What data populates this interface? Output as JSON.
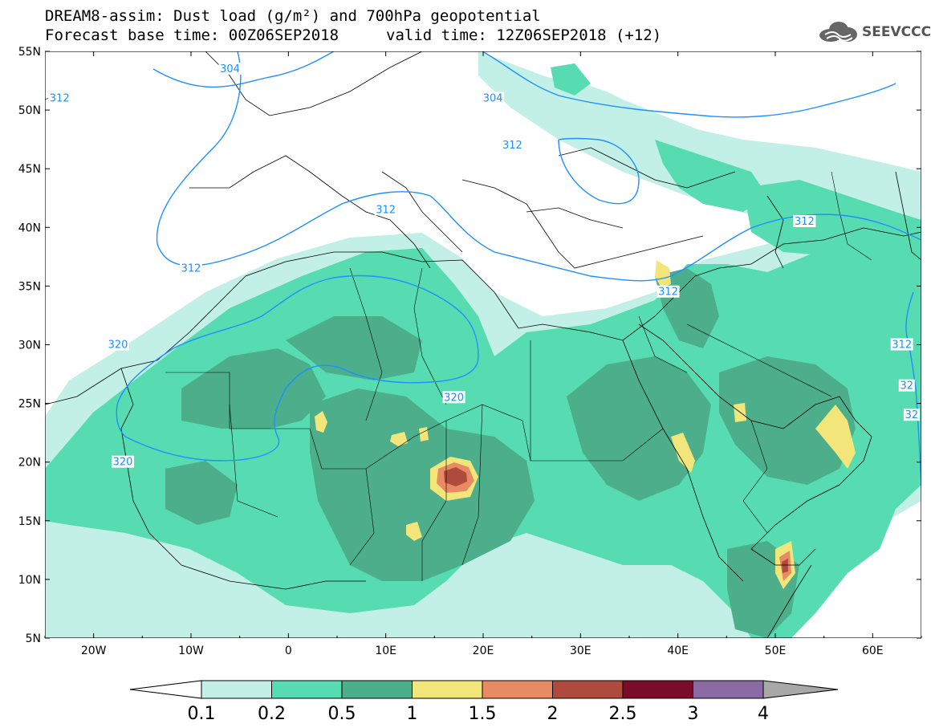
{
  "title": {
    "line1": "DREAM8-assim: Dust load (g/m²) and 700hPa geopotential",
    "base_time": "Forecast base time: 00Z06SEP2018",
    "valid_time": "valid time: 12Z06SEP2018 (+12)"
  },
  "logo": {
    "text": "SEEVCCC",
    "icon": "cloud-logo-icon"
  },
  "map": {
    "lon_range": [
      -25,
      65
    ],
    "lat_range": [
      5,
      55
    ],
    "lat_labels": [
      "55N",
      "50N",
      "45N",
      "40N",
      "35N",
      "30N",
      "25N",
      "20N",
      "15N",
      "10N",
      "5N"
    ],
    "lon_labels": [
      "20W",
      "10W",
      "0",
      "10E",
      "20E",
      "30E",
      "40E",
      "50E",
      "60E"
    ],
    "contour_labels": [
      {
        "text": "304",
        "lon": -6,
        "lat": 53.5
      },
      {
        "text": "312",
        "lon": -23.5,
        "lat": 51
      },
      {
        "text": "304",
        "lon": 21,
        "lat": 51
      },
      {
        "text": "312",
        "lon": 23,
        "lat": 47
      },
      {
        "text": "312",
        "lon": -10,
        "lat": 36.5
      },
      {
        "text": "312",
        "lon": 10,
        "lat": 41.5
      },
      {
        "text": "312",
        "lon": 39,
        "lat": 34.5
      },
      {
        "text": "312",
        "lon": 53,
        "lat": 40.5
      },
      {
        "text": "320",
        "lon": -17.5,
        "lat": 30
      },
      {
        "text": "320",
        "lon": 17,
        "lat": 25.5
      },
      {
        "text": "320",
        "lon": -17,
        "lat": 20
      },
      {
        "text": "312",
        "lon": 63,
        "lat": 30
      },
      {
        "text": "32",
        "lon": 63.5,
        "lat": 26.5
      },
      {
        "text": "32",
        "lon": 64,
        "lat": 24
      }
    ],
    "contour_color": "#1e90ff"
  },
  "colorbar": {
    "labels": [
      "0.1",
      "0.2",
      "0.5",
      "1",
      "1.5",
      "2",
      "2.5",
      "3",
      "4"
    ],
    "colors": [
      "#c2efe6",
      "#56dcb0",
      "#4cae8a",
      "#f2e67a",
      "#e88a63",
      "#ae4b3c",
      "#7a0c2a",
      "#8a6aa3"
    ],
    "under_color": "#ffffff",
    "over_color": "#a8a8a8"
  }
}
